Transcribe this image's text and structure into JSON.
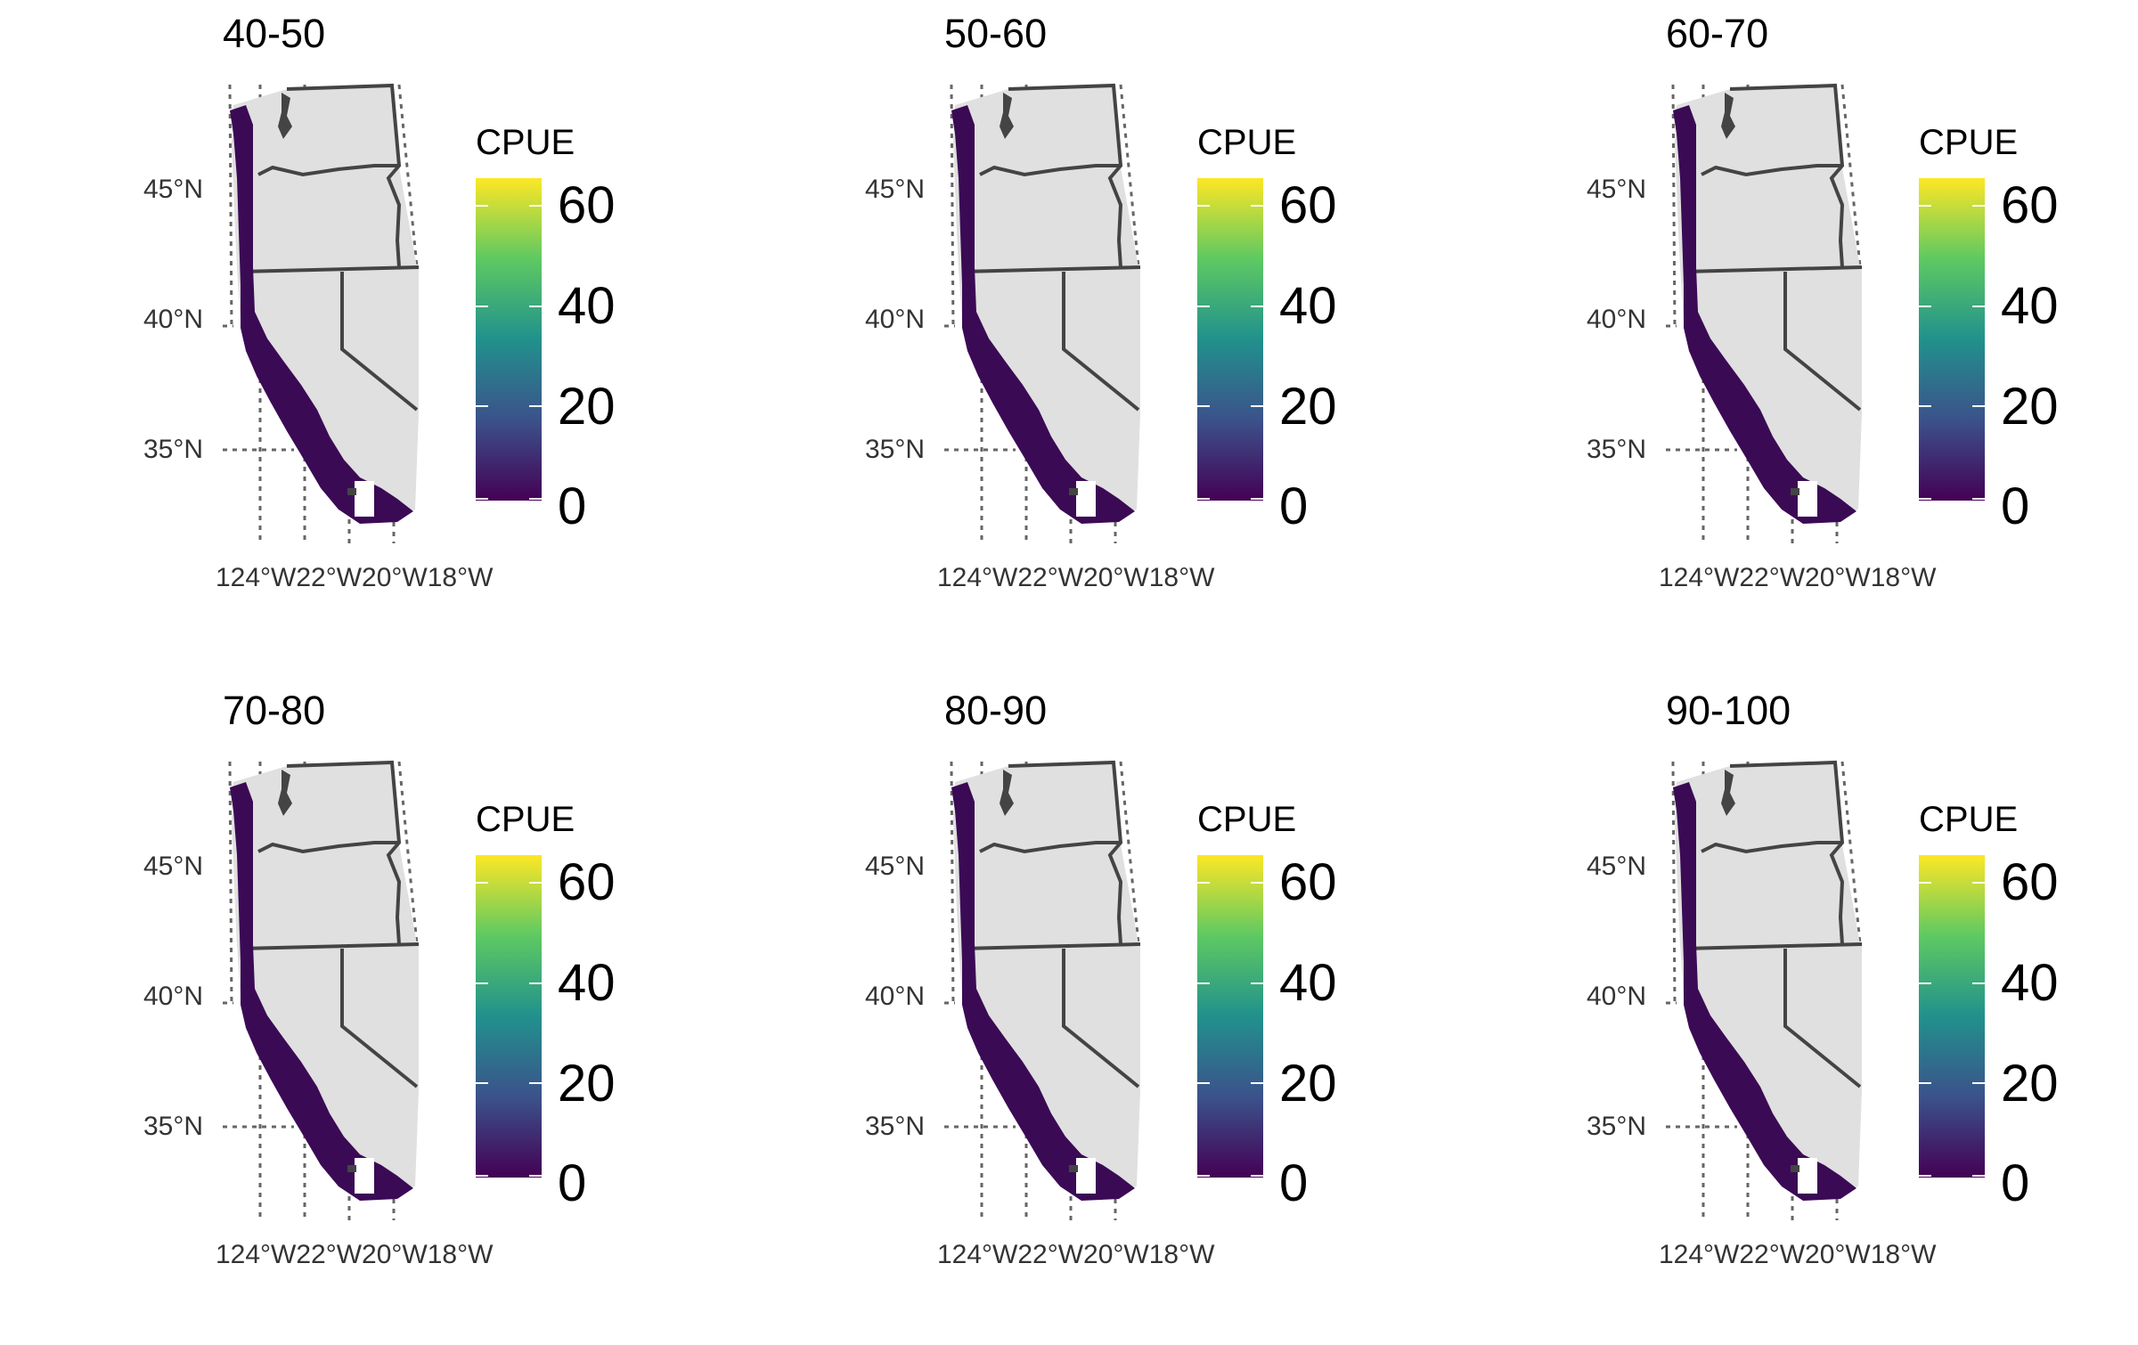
{
  "legend": {
    "title": "CPUE",
    "ticks": [
      "60",
      "40",
      "20",
      "0"
    ],
    "scale_min": 0,
    "scale_max": 65,
    "colormap": "viridis",
    "colors": [
      "#440154",
      "#3b528b",
      "#21918c",
      "#5ec962",
      "#fde725"
    ]
  },
  "axes": {
    "lat_labels": [
      "45°N",
      "40°N",
      "35°N"
    ],
    "lon_labels": [
      "124°W",
      "122°W",
      "120°W",
      "118°W"
    ],
    "lon_overlap_text": "124°W22°W20°W18°W"
  },
  "map": {
    "land_color": "#e0e0e0",
    "border_color": "#444444",
    "data_color": "#3b0a55",
    "grid_color": "#666666"
  },
  "panels": [
    {
      "title": "40-50"
    },
    {
      "title": "50-60"
    },
    {
      "title": "60-70"
    },
    {
      "title": "70-80"
    },
    {
      "title": "80-90"
    },
    {
      "title": "90-100"
    }
  ]
}
